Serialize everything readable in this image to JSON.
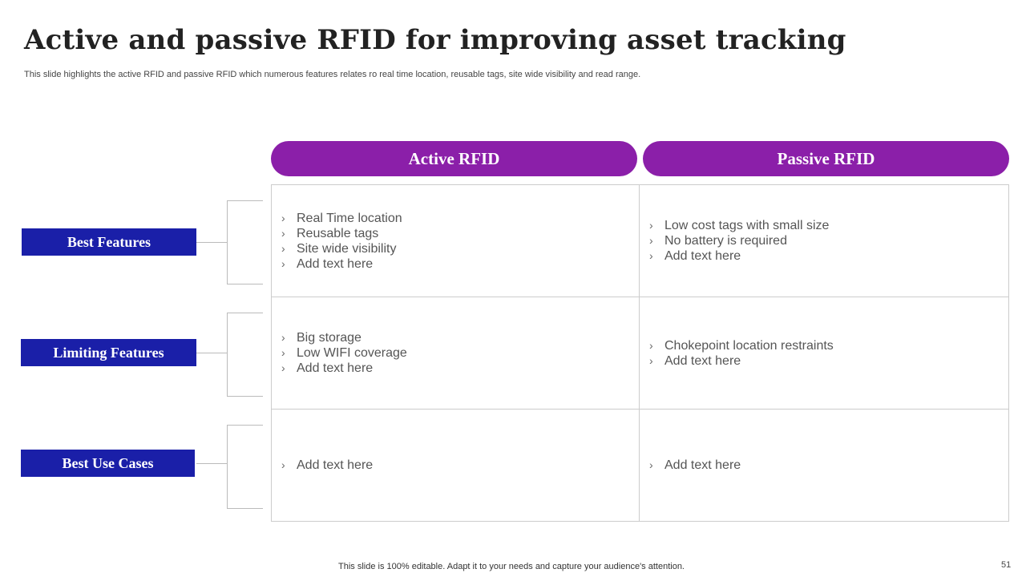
{
  "title": "Active and passive RFID for improving asset tracking",
  "subtitle": "This slide highlights the active RFID and passive RFID which numerous features relates ro real time location, reusable tags, site wide visibility and read range.",
  "colors": {
    "header": "#8b1fa9",
    "label": "#1a1fa8"
  },
  "columns": [
    "Active RFID",
    "Passive RFID"
  ],
  "rows": [
    {
      "label": "Best Features",
      "active": [
        "Real Time location",
        "Reusable tags",
        "Site wide visibility",
        "Add text here"
      ],
      "passive": [
        "Low cost tags with small size",
        "No battery is required",
        "Add text here"
      ]
    },
    {
      "label": "Limiting Features",
      "active": [
        "Big storage",
        "Low WIFI coverage",
        "Add text here"
      ],
      "passive": [
        "Chokepoint location restraints",
        "Add text here"
      ]
    },
    {
      "label": "Best Use Cases",
      "active": [
        "Add text here"
      ],
      "passive": [
        "Add text here"
      ]
    }
  ],
  "bullet": "›",
  "footer": "This slide is 100% editable. Adapt it to your needs and capture your audience's attention.",
  "page_number": "51"
}
